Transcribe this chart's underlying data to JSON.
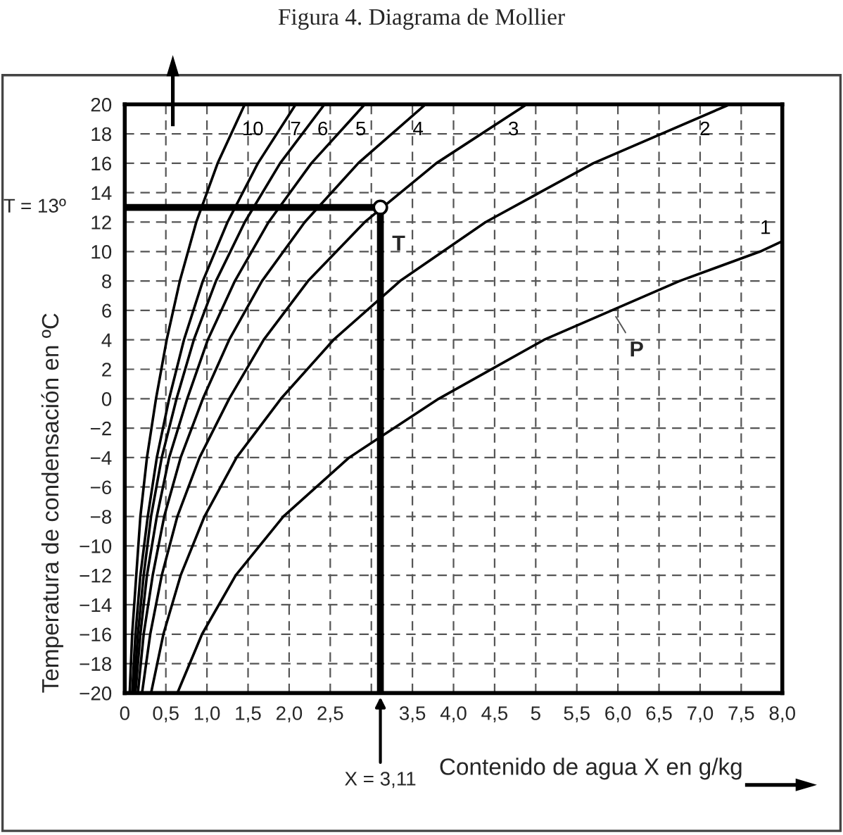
{
  "chart_data": {
    "type": "line",
    "title": "Figura 4. Diagrama de Mollier",
    "xlabel": "Contenido de agua X en g/kg",
    "ylabel": "Temperatura de condensación en ºC",
    "xlim": [
      0,
      8
    ],
    "ylim": [
      -20,
      20
    ],
    "xticks": [
      0,
      {
        "value": 0.5,
        "label": "0,5"
      },
      {
        "value": 1,
        "label": "1,0"
      },
      {
        "value": 1.5,
        "label": "1,5"
      },
      {
        "value": 2,
        "label": "2,0"
      },
      {
        "value": 2.5,
        "label": "2,5"
      },
      {
        "value": 3,
        "label": null
      },
      {
        "value": 3.5,
        "label": "3,5"
      },
      {
        "value": 4,
        "label": "4,0"
      },
      {
        "value": 4.5,
        "label": "4,5"
      },
      5,
      {
        "value": 5.5,
        "label": "5,5"
      },
      {
        "value": 6,
        "label": "6,0"
      },
      {
        "value": 6.5,
        "label": "6,5"
      },
      {
        "value": 7,
        "label": "7,0"
      },
      {
        "value": 7.5,
        "label": "7,5"
      },
      {
        "value": 8,
        "label": "8,0"
      }
    ],
    "yticks": [
      {
        "value": -20,
        "label": "−20"
      },
      {
        "value": -18,
        "label": "−18"
      },
      {
        "value": -16,
        "label": "−16"
      },
      {
        "value": -14,
        "label": "−14"
      },
      {
        "value": -12,
        "label": "−12"
      },
      {
        "value": -10,
        "label": "−10"
      },
      {
        "value": -8,
        "label": "−8"
      },
      {
        "value": -6,
        "label": "−6"
      },
      {
        "value": -4,
        "label": "−4"
      },
      {
        "value": -2,
        "label": "−2"
      },
      0,
      2,
      4,
      6,
      8,
      10,
      12,
      14,
      16,
      18,
      20
    ],
    "grid": true,
    "legend": false,
    "marker": "none",
    "line_style": "solid",
    "series": [
      {
        "name": "10",
        "color": "#000000",
        "x": [
          0.06,
          0.09,
          0.14,
          0.19,
          0.27,
          0.38,
          0.51,
          0.67,
          0.87,
          1.13,
          1.46
        ],
        "values": [
          -20,
          -16,
          -12,
          -8,
          -4,
          0,
          4,
          8,
          12,
          16,
          20
        ]
      },
      {
        "name": "7",
        "color": "#000000",
        "x": [
          0.09,
          0.13,
          0.19,
          0.28,
          0.39,
          0.54,
          0.72,
          0.95,
          1.25,
          1.62,
          2.08
        ],
        "values": [
          -20,
          -16,
          -12,
          -8,
          -4,
          0,
          4,
          8,
          12,
          16,
          20
        ]
      },
      {
        "name": "6",
        "color": "#000000",
        "x": [
          0.11,
          0.16,
          0.23,
          0.32,
          0.45,
          0.63,
          0.84,
          1.11,
          1.46,
          1.89,
          2.43
        ],
        "values": [
          -20,
          -16,
          -12,
          -8,
          -4,
          0,
          4,
          8,
          12,
          16,
          20
        ]
      },
      {
        "name": "5",
        "color": "#000000",
        "x": [
          0.13,
          0.19,
          0.27,
          0.39,
          0.54,
          0.76,
          1.01,
          1.34,
          1.75,
          2.27,
          2.92
        ],
        "values": [
          -20,
          -16,
          -12,
          -8,
          -4,
          0,
          4,
          8,
          12,
          16,
          20
        ]
      },
      {
        "name": "4",
        "color": "#000000",
        "x": [
          0.16,
          0.23,
          0.34,
          0.48,
          0.68,
          0.95,
          1.27,
          1.67,
          2.19,
          2.84,
          3.66
        ],
        "values": [
          -20,
          -16,
          -12,
          -8,
          -4,
          0,
          4,
          8,
          12,
          16,
          20
        ]
      },
      {
        "name": "3",
        "color": "#000000",
        "x": [
          0.21,
          0.31,
          0.45,
          0.64,
          0.91,
          1.27,
          1.69,
          2.23,
          2.92,
          3.79,
          4.89
        ],
        "values": [
          -20,
          -16,
          -12,
          -8,
          -4,
          0,
          4,
          8,
          12,
          16,
          20
        ]
      },
      {
        "name": "2",
        "color": "#000000",
        "x": [
          0.32,
          0.47,
          0.68,
          0.97,
          1.36,
          1.9,
          2.54,
          3.35,
          4.39,
          5.7,
          7.36
        ],
        "values": [
          -20,
          -16,
          -12,
          -8,
          -4,
          0,
          4,
          8,
          12,
          16,
          20
        ]
      },
      {
        "name": "1",
        "color": "#000000",
        "x": [
          0.64,
          0.94,
          1.35,
          1.93,
          2.73,
          3.82,
          5.1,
          6.75,
          7.73,
          8.0
        ],
        "values": [
          -20,
          -16,
          -12,
          -8,
          -4,
          0,
          4,
          8,
          10,
          10.7
        ]
      },
      {
        "type": "line",
        "color": "#000000",
        "x": [
          0,
          3.11,
          3.11
        ],
        "values": [
          13,
          13,
          -20
        ]
      },
      {
        "type": "scatter",
        "color": "#000000",
        "marker": "circle",
        "x": [
          3.11
        ],
        "values": [
          13
        ]
      }
    ],
    "annotations": [
      "T = 13º",
      "X = 3,11",
      {
        "text": "T",
        "x": 3.11,
        "y": 13
      },
      {
        "text": "P",
        "x": 5.95,
        "y": 5.8
      }
    ]
  }
}
